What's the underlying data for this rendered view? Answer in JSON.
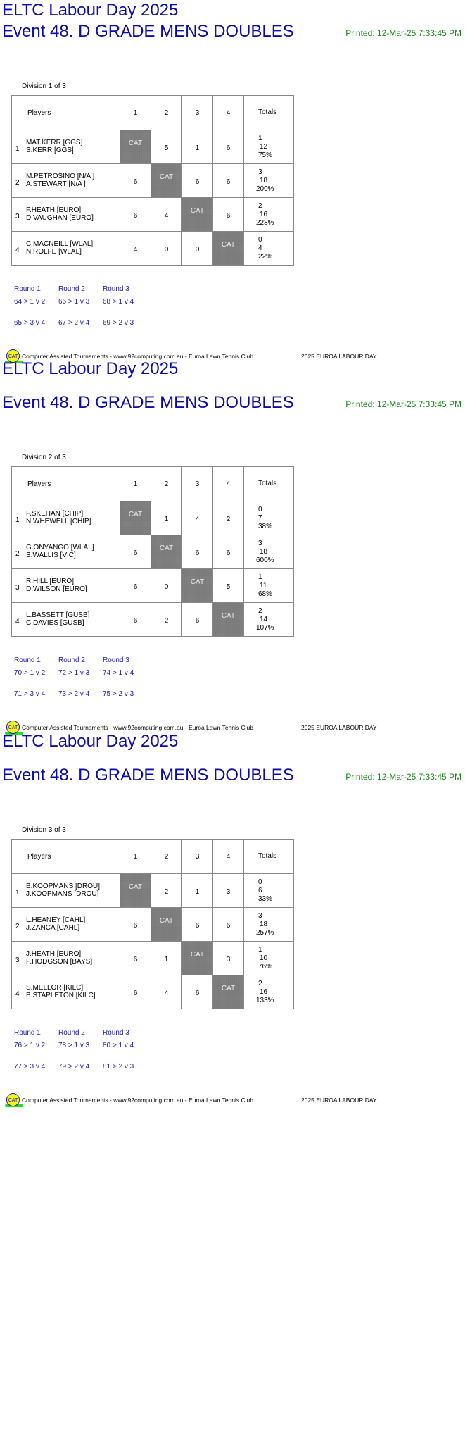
{
  "header": {
    "title": "ELTC Labour Day 2025",
    "event": "Event 48. D GRADE MENS DOUBLES",
    "printed": "Printed: 12-Mar-25 7:33:45 PM"
  },
  "table_headers": {
    "players": "Players",
    "cols": [
      "1",
      "2",
      "3",
      "4"
    ],
    "totals": "Totals"
  },
  "bye_label": "CAT",
  "round_labels": [
    "Round 1",
    "Round 2",
    "Round 3"
  ],
  "footer": {
    "logo": "CAT",
    "text": "Computer Assisted Tournaments - www.92computing.com.au -  Euroa Lawn Tennis Club",
    "event": "2025 EUROA LABOUR DAY"
  },
  "colors": {
    "title": "#0c0ca8",
    "printed": "#1a8a1a",
    "bye_cell": "#7b7b7b",
    "rounds": "#1a1ab0"
  },
  "divisions": [
    {
      "label": "Division 1 of 3",
      "players": [
        {
          "num": "1",
          "names": [
            "MAT.KERR [GGS]",
            "S.KERR [GGS]"
          ],
          "scores": [
            "CAT",
            "5",
            "1",
            "6"
          ],
          "totals": [
            "1",
            "12",
            "75%"
          ]
        },
        {
          "num": "2",
          "names": [
            "M.PETROSINO [N/A ]",
            "A.STEWART [N/A ]"
          ],
          "scores": [
            "6",
            "CAT",
            "6",
            "6"
          ],
          "totals": [
            "3",
            "18",
            "200%"
          ]
        },
        {
          "num": "3",
          "names": [
            "F.HEATH [EURO]",
            "D.VAUGHAN [EURO]"
          ],
          "scores": [
            "6",
            "4",
            "CAT",
            "6"
          ],
          "totals": [
            "2",
            "16",
            "228%"
          ]
        },
        {
          "num": "4",
          "names": [
            "C.MACNEILL [WLAL]",
            "N.ROLFE [WLAL]"
          ],
          "scores": [
            "4",
            "0",
            "0",
            "CAT"
          ],
          "totals": [
            "0",
            "4",
            "22%"
          ]
        }
      ],
      "rounds": [
        [
          "64 > 1 v 2",
          "65 > 3 v 4"
        ],
        [
          "66 > 1 v 3",
          "67 > 2 v 4"
        ],
        [
          "68 > 1 v 4",
          "69 > 2 v 3"
        ]
      ]
    },
    {
      "label": "Division 2 of 3",
      "players": [
        {
          "num": "1",
          "names": [
            "F.SKEHAN [CHIP]",
            "N.WHEWELL [CHIP]"
          ],
          "scores": [
            "CAT",
            "1",
            "4",
            "2"
          ],
          "totals": [
            "0",
            "7",
            "38%"
          ]
        },
        {
          "num": "2",
          "names": [
            "G.ONYANGO [WLAL]",
            "S.WALLIS [VIC]"
          ],
          "scores": [
            "6",
            "CAT",
            "6",
            "6"
          ],
          "totals": [
            "3",
            "18",
            "600%"
          ]
        },
        {
          "num": "3",
          "names": [
            "R.HILL [EURO]",
            "D.WILSON [EURO]"
          ],
          "scores": [
            "6",
            "0",
            "CAT",
            "5"
          ],
          "totals": [
            "1",
            "11",
            "68%"
          ]
        },
        {
          "num": "4",
          "names": [
            "L.BASSETT [GUSB]",
            "C.DAVIES [GUSB]"
          ],
          "scores": [
            "6",
            "2",
            "6",
            "CAT"
          ],
          "totals": [
            "2",
            "14",
            "107%"
          ]
        }
      ],
      "rounds": [
        [
          "70 > 1 v 2",
          "71 > 3 v 4"
        ],
        [
          "72 > 1 v 3",
          "73 > 2 v 4"
        ],
        [
          "74 > 1 v 4",
          "75 > 2 v 3"
        ]
      ]
    },
    {
      "label": "Division 3 of 3",
      "players": [
        {
          "num": "1",
          "names": [
            "B.KOOPMANS [DROU]",
            "J.KOOPMANS [DROU]"
          ],
          "scores": [
            "CAT",
            "2",
            "1",
            "3"
          ],
          "totals": [
            "0",
            "6",
            "33%"
          ]
        },
        {
          "num": "2",
          "names": [
            "L.HEANEY [CAHL]",
            "J.ZANCA [CAHL]"
          ],
          "scores": [
            "6",
            "CAT",
            "6",
            "6"
          ],
          "totals": [
            "3",
            "18",
            "257%"
          ]
        },
        {
          "num": "3",
          "names": [
            "J.HEATH [EURO]",
            "P.HODGSON [BAYS]"
          ],
          "scores": [
            "6",
            "1",
            "CAT",
            "3"
          ],
          "totals": [
            "1",
            "10",
            "76%"
          ]
        },
        {
          "num": "4",
          "names": [
            "S.MELLOR [KILC]",
            "B.STAPLETON [KILC]"
          ],
          "scores": [
            "6",
            "4",
            "6",
            "CAT"
          ],
          "totals": [
            "2",
            "16",
            "133%"
          ]
        }
      ],
      "rounds": [
        [
          "76 > 1 v 2",
          "77 > 3 v 4"
        ],
        [
          "78 > 1 v 3",
          "79 > 2 v 4"
        ],
        [
          "80 > 1 v 4",
          "81 > 2 v 3"
        ]
      ]
    }
  ]
}
